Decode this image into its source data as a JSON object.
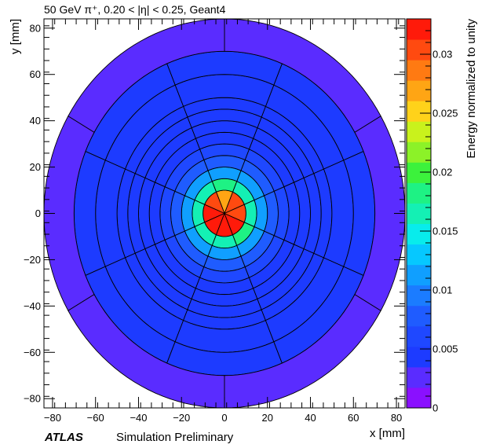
{
  "title": "50 GeV π⁺, 0.20 < |η| < 0.25, Geant4",
  "atlas_label": "ATLAS",
  "atlas_sublabel": "Simulation Preliminary",
  "chart_data": {
    "type": "heatmap",
    "subtype": "polar-binned energy map",
    "xlabel": "x [mm]",
    "ylabel": "y [mm]",
    "zlabel": "Energy normalized to unity",
    "xlim": [
      -84,
      84
    ],
    "ylim": [
      -84,
      84
    ],
    "zlim": [
      0,
      0.033
    ],
    "x_ticks": [
      -80,
      -60,
      -40,
      -20,
      0,
      20,
      40,
      60,
      80
    ],
    "y_ticks": [
      -80,
      -60,
      -40,
      -20,
      0,
      20,
      40,
      60,
      80
    ],
    "z_ticks": [
      0,
      0.005,
      0.01,
      0.015,
      0.02,
      0.025,
      0.03
    ],
    "z_tick_labels": [
      "0",
      "0.005",
      "0.01",
      "0.015",
      "0.02",
      "0.025",
      "0.03"
    ],
    "palette": [
      "#8a10ff",
      "#5a2cff",
      "#1d3bff",
      "#1f48ff",
      "#1f5cff",
      "#1b7cff",
      "#109fff",
      "#06c8ff",
      "#08ecec",
      "#14f0b4",
      "#1ef284",
      "#3cf23c",
      "#8cf228",
      "#c9f21c",
      "#ffd21a",
      "#ffa514",
      "#ff7a12",
      "#ff4a10",
      "#ff1a0a"
    ],
    "radial_edges": [
      0,
      10,
      15,
      20,
      25,
      30,
      35,
      40,
      45,
      50,
      60,
      70,
      84
    ],
    "angle_bins": 8,
    "angle_offset_deg": 22.5,
    "outer_ring_angle_bins": 6,
    "outer_ring_angle_offset_deg": 30,
    "rings": [
      {
        "r_min": 0,
        "r_max": 10,
        "values": [
          0.03,
          0.027,
          0.031,
          0.032,
          0.033,
          0.033,
          0.032,
          0.031
        ]
      },
      {
        "r_min": 10,
        "r_max": 15,
        "values": [
          0.017,
          0.018,
          0.017,
          0.016,
          0.016,
          0.017,
          0.018,
          0.017
        ]
      },
      {
        "r_min": 15,
        "r_max": 20,
        "values": [
          0.012,
          0.012,
          0.011,
          0.011,
          0.011,
          0.012,
          0.012,
          0.011
        ]
      },
      {
        "r_min": 20,
        "r_max": 25,
        "values": [
          0.008,
          0.008,
          0.008,
          0.008,
          0.008,
          0.008,
          0.008,
          0.008
        ]
      },
      {
        "r_min": 25,
        "r_max": 30,
        "values": [
          0.006,
          0.006,
          0.006,
          0.006,
          0.006,
          0.006,
          0.006,
          0.006
        ]
      },
      {
        "r_min": 30,
        "r_max": 35,
        "values": [
          0.005,
          0.005,
          0.005,
          0.005,
          0.005,
          0.005,
          0.005,
          0.005
        ]
      },
      {
        "r_min": 35,
        "r_max": 40,
        "values": [
          0.0045,
          0.0045,
          0.0045,
          0.0045,
          0.0045,
          0.0045,
          0.0045,
          0.0045
        ]
      },
      {
        "r_min": 40,
        "r_max": 45,
        "values": [
          0.0042,
          0.0042,
          0.0042,
          0.0042,
          0.0042,
          0.0042,
          0.0042,
          0.0042
        ]
      },
      {
        "r_min": 45,
        "r_max": 50,
        "values": [
          0.004,
          0.004,
          0.004,
          0.004,
          0.004,
          0.004,
          0.004,
          0.004
        ]
      },
      {
        "r_min": 50,
        "r_max": 60,
        "values": [
          0.0038,
          0.0038,
          0.0038,
          0.0038,
          0.0038,
          0.0038,
          0.0038,
          0.0038
        ]
      },
      {
        "r_min": 60,
        "r_max": 70,
        "values": [
          0.0035,
          0.0035,
          0.0035,
          0.0035,
          0.0035,
          0.0035,
          0.0035,
          0.0035
        ]
      },
      {
        "r_min": 70,
        "r_max": 84,
        "values": [
          0.0033,
          0.0033,
          0.0033,
          0.0033,
          0.0033,
          0.0033
        ]
      }
    ]
  }
}
